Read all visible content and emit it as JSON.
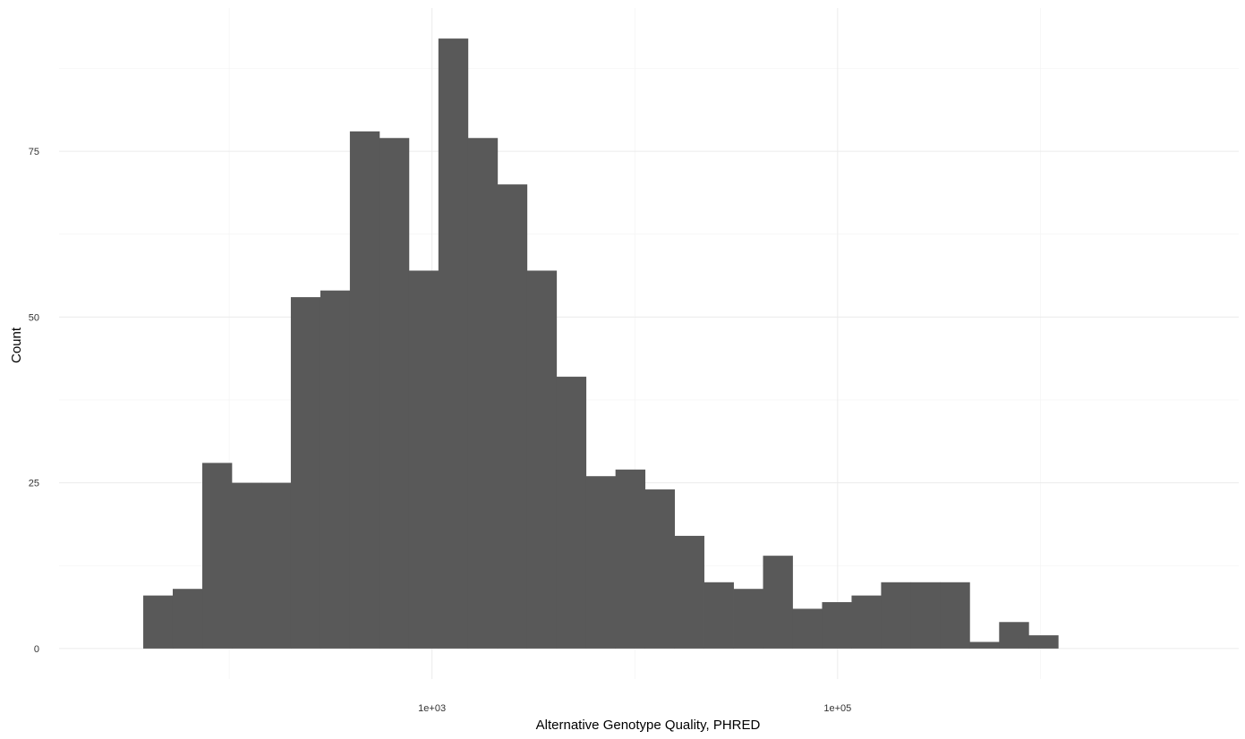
{
  "chart_data": {
    "type": "bar",
    "title": "",
    "xlabel": "Alternative Genotype Quality, PHRED",
    "ylabel": "Count",
    "x_scale": "log10",
    "x_major_ticks": [
      {
        "value": 1000,
        "label": "1e+03"
      },
      {
        "value": 100000,
        "label": "1e+05"
      }
    ],
    "x_minor_ticks": [
      100,
      10000,
      1000000
    ],
    "y_major_ticks": [
      {
        "value": 0,
        "label": "0"
      },
      {
        "value": 25,
        "label": "25"
      },
      {
        "value": 50,
        "label": "50"
      },
      {
        "value": 75,
        "label": "75"
      }
    ],
    "y_minor_ticks": [
      12.5,
      37.5,
      62.5,
      87.5
    ],
    "xlim": [
      14.5,
      9500000
    ],
    "ylim": [
      -4.6,
      96.6
    ],
    "bar_color": "#595959",
    "grid": true,
    "bins": [
      {
        "x0": 37.7,
        "x1": 52.7,
        "count": 8
      },
      {
        "x0": 52.7,
        "x1": 73.7,
        "count": 9
      },
      {
        "x0": 73.7,
        "x1": 103.0,
        "count": 28
      },
      {
        "x0": 103.0,
        "x1": 144.0,
        "count": 25
      },
      {
        "x0": 144.0,
        "x1": 201.4,
        "count": 25
      },
      {
        "x0": 201.4,
        "x1": 281.6,
        "count": 53
      },
      {
        "x0": 281.6,
        "x1": 393.7,
        "count": 54
      },
      {
        "x0": 393.7,
        "x1": 550.4,
        "count": 78
      },
      {
        "x0": 550.4,
        "x1": 769.4,
        "count": 77
      },
      {
        "x0": 769.4,
        "x1": 1075.7,
        "count": 57
      },
      {
        "x0": 1075.7,
        "x1": 1503.8,
        "count": 92
      },
      {
        "x0": 1503.8,
        "x1": 2102.4,
        "count": 77
      },
      {
        "x0": 2102.4,
        "x1": 2939.2,
        "count": 70
      },
      {
        "x0": 2939.2,
        "x1": 4109.0,
        "count": 57
      },
      {
        "x0": 4109.0,
        "x1": 5744.3,
        "count": 41
      },
      {
        "x0": 5744.3,
        "x1": 8030.7,
        "count": 26
      },
      {
        "x0": 8030.7,
        "x1": 11227.0,
        "count": 27
      },
      {
        "x0": 11227.0,
        "x1": 15695.0,
        "count": 24
      },
      {
        "x0": 15695.0,
        "x1": 21942.0,
        "count": 17
      },
      {
        "x0": 21942.0,
        "x1": 30675.0,
        "count": 10
      },
      {
        "x0": 30675.0,
        "x1": 42884.0,
        "count": 9
      },
      {
        "x0": 42884.0,
        "x1": 59952.0,
        "count": 14
      },
      {
        "x0": 59952.0,
        "x1": 83813.0,
        "count": 6
      },
      {
        "x0": 83813.0,
        "x1": 117172.0,
        "count": 7
      },
      {
        "x0": 117172.0,
        "x1": 163808.0,
        "count": 8
      },
      {
        "x0": 163808.0,
        "x1": 229005.0,
        "count": 10
      },
      {
        "x0": 229005.0,
        "x1": 320150.0,
        "count": 10
      },
      {
        "x0": 320150.0,
        "x1": 447572.0,
        "count": 10
      },
      {
        "x0": 447572.0,
        "x1": 625709.0,
        "count": 1
      },
      {
        "x0": 625709.0,
        "x1": 874746.0,
        "count": 4
      },
      {
        "x0": 874746.0,
        "x1": 1222900.0,
        "count": 2
      }
    ]
  }
}
